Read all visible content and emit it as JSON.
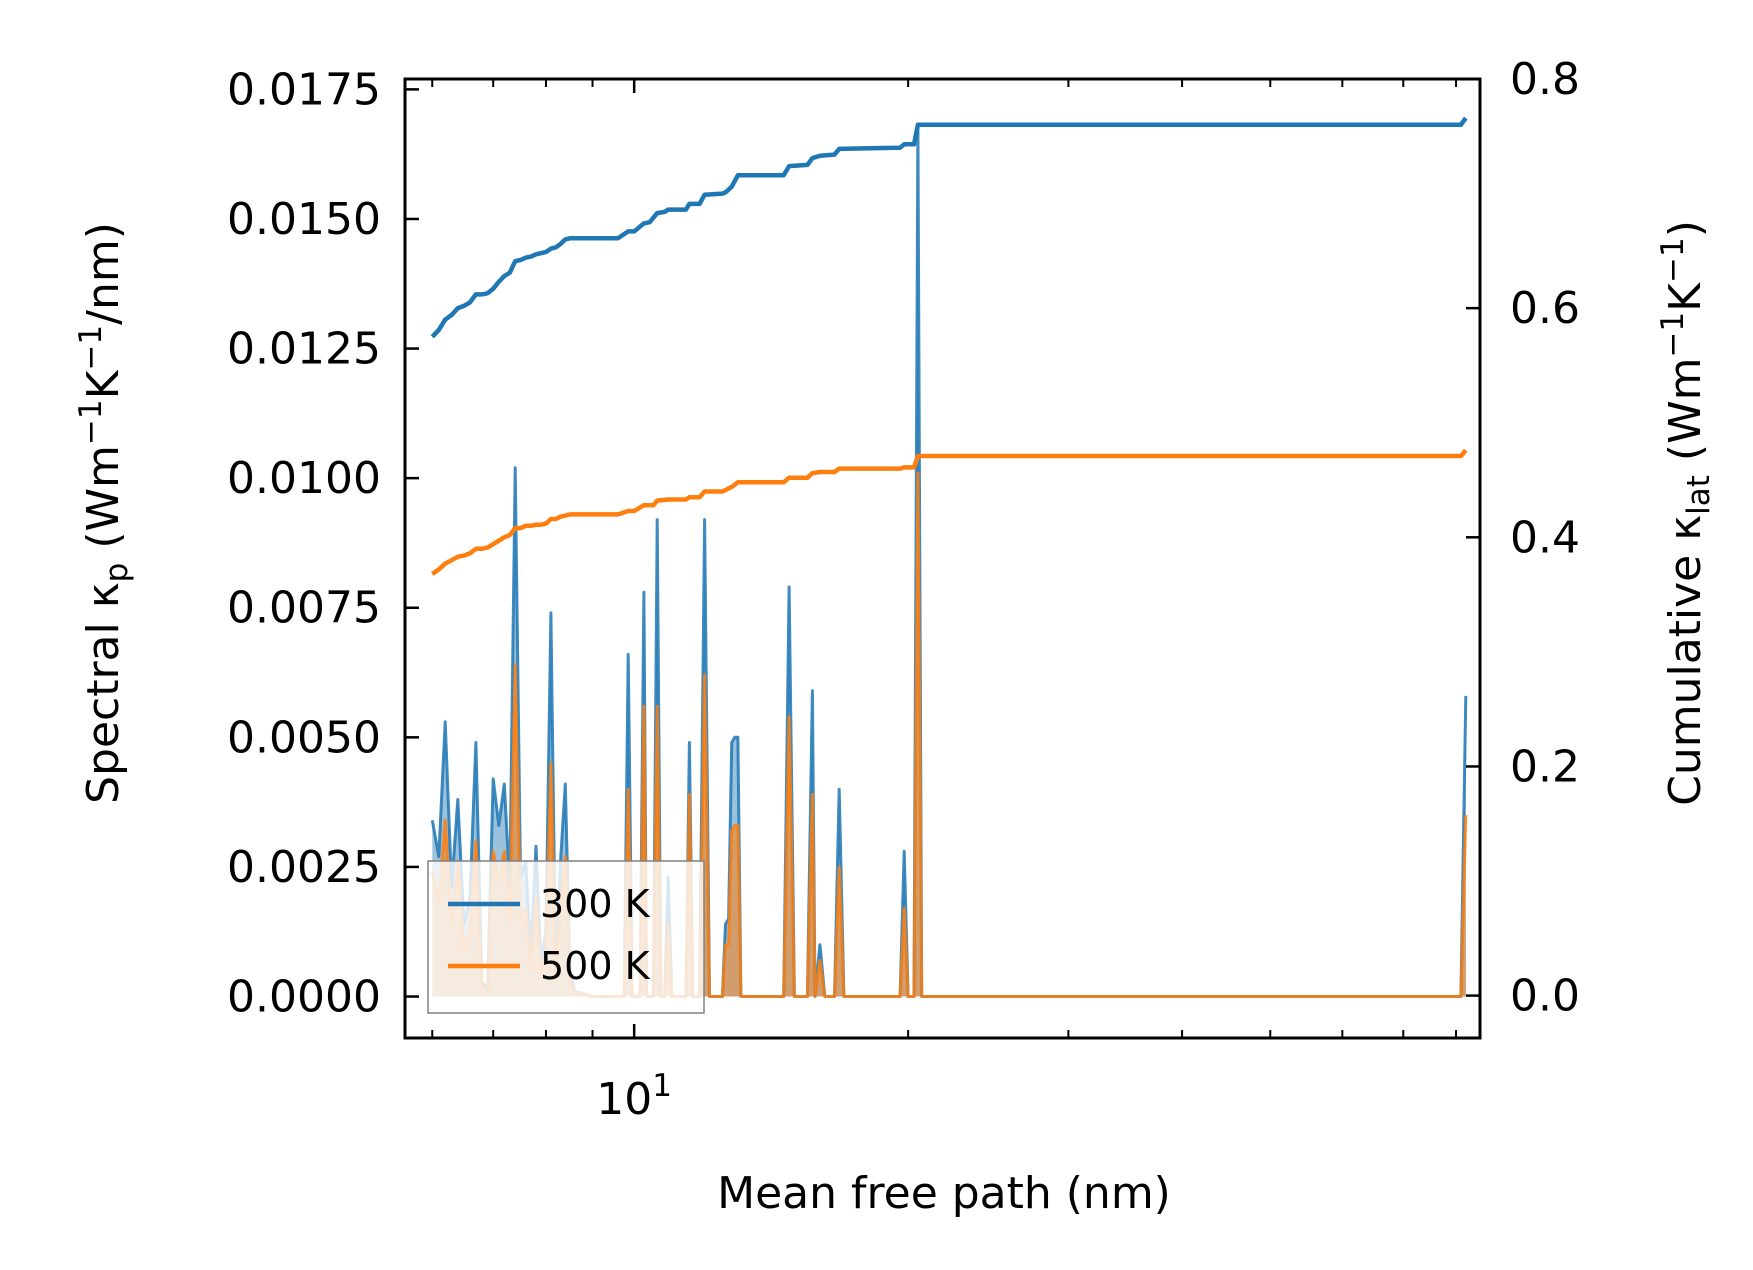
{
  "chart_data": {
    "type": "line",
    "xlabel": "Mean free path (nm)",
    "xscale": "log",
    "xlim": [
      5.6,
      85
    ],
    "x_major_ticks": [
      {
        "value": 10,
        "base": "10",
        "exp": "1"
      }
    ],
    "x_minor_ticks": [
      6,
      7,
      8,
      9,
      20,
      30,
      40,
      50,
      60,
      70,
      80
    ],
    "ylabel_left": {
      "pre": "Spectral κ",
      "sub": "p",
      "unit": " (Wm",
      "e1": "−1",
      "mid": "K",
      "e2": "−1",
      "end": "/nm)"
    },
    "ylabel_right": {
      "pre": "Cumulative κ",
      "sub": "lat",
      "unit": " (Wm",
      "e1": "−1",
      "mid": "K",
      "e2": "−1",
      "end": ")"
    },
    "ylim_left": [
      -0.0008,
      0.0177
    ],
    "ylim_right": [
      -0.037,
      0.8
    ],
    "yticks_left": [
      "0.0000",
      "0.0025",
      "0.0050",
      "0.0075",
      "0.0100",
      "0.0125",
      "0.0150",
      "0.0175"
    ],
    "yticks_right": [
      "0.0",
      "0.2",
      "0.4",
      "0.6",
      "0.8"
    ],
    "legend": {
      "position": "lower-left",
      "entries": [
        "300 K",
        "500 K"
      ]
    },
    "colors": {
      "300 K": "#1f77b4",
      "500 K": "#ff7f0e"
    },
    "spectral": {
      "300 K": [
        [
          6.0,
          0.0034
        ],
        [
          6.1,
          0.0027
        ],
        [
          6.2,
          0.0053
        ],
        [
          6.3,
          0.0021
        ],
        [
          6.4,
          0.0038
        ],
        [
          6.5,
          0.0014
        ],
        [
          6.6,
          0.0019
        ],
        [
          6.7,
          0.0049
        ],
        [
          6.8,
          0.0003
        ],
        [
          6.9,
          0.0001
        ],
        [
          7.0,
          0.0042
        ],
        [
          7.1,
          0.0033
        ],
        [
          7.2,
          0.0041
        ],
        [
          7.3,
          0.0021
        ],
        [
          7.4,
          0.0102
        ],
        [
          7.5,
          0.0023
        ],
        [
          7.6,
          0.0026
        ],
        [
          7.7,
          0.0008
        ],
        [
          7.8,
          0.0029
        ],
        [
          7.9,
          0.0006
        ],
        [
          8.0,
          0.0013
        ],
        [
          8.1,
          0.0074
        ],
        [
          8.2,
          0.0004
        ],
        [
          8.3,
          0.0026
        ],
        [
          8.4,
          0.0041
        ],
        [
          8.5,
          0.0005
        ],
        [
          8.6,
          0.0001
        ],
        [
          9.0,
          0.0
        ],
        [
          9.6,
          0.0
        ],
        [
          9.75,
          0.0
        ],
        [
          9.85,
          0.0066
        ],
        [
          9.95,
          0.0
        ],
        [
          10.15,
          0.0
        ],
        [
          10.25,
          0.0078
        ],
        [
          10.32,
          0.0
        ],
        [
          10.5,
          0.0
        ],
        [
          10.6,
          0.0092
        ],
        [
          10.7,
          0.0
        ],
        [
          10.8,
          0.0
        ],
        [
          10.9,
          0.0023
        ],
        [
          11.0,
          0.0
        ],
        [
          11.4,
          0.0
        ],
        [
          11.5,
          0.0049
        ],
        [
          11.6,
          0.0
        ],
        [
          11.8,
          0.0
        ],
        [
          11.95,
          0.0092
        ],
        [
          12.1,
          0.0
        ],
        [
          12.5,
          0.0
        ],
        [
          12.6,
          0.0014
        ],
        [
          12.7,
          0.0015
        ],
        [
          12.8,
          0.0049
        ],
        [
          12.9,
          0.005
        ],
        [
          13.0,
          0.005
        ],
        [
          13.1,
          0.0
        ],
        [
          14.6,
          0.0
        ],
        [
          14.8,
          0.0079
        ],
        [
          15.0,
          0.0
        ],
        [
          15.5,
          0.0
        ],
        [
          15.7,
          0.0059
        ],
        [
          15.8,
          0.0
        ],
        [
          16.0,
          0.001
        ],
        [
          16.2,
          0.0
        ],
        [
          16.6,
          0.0
        ],
        [
          16.8,
          0.004
        ],
        [
          17.0,
          0.0
        ],
        [
          19.6,
          0.0
        ],
        [
          19.8,
          0.0028
        ],
        [
          20.0,
          0.0
        ],
        [
          20.3,
          0.0
        ],
        [
          20.5,
          0.0168
        ],
        [
          20.7,
          0.0
        ],
        [
          81.0,
          0.0
        ],
        [
          82.0,
          0.0058
        ]
      ],
      "500 K": [
        [
          6.0,
          0.0024
        ],
        [
          6.1,
          0.0018
        ],
        [
          6.2,
          0.0034
        ],
        [
          6.3,
          0.0014
        ],
        [
          6.4,
          0.0026
        ],
        [
          6.5,
          0.0009
        ],
        [
          6.6,
          0.0013
        ],
        [
          6.7,
          0.003
        ],
        [
          6.8,
          0.0002
        ],
        [
          6.9,
          0.0001
        ],
        [
          7.0,
          0.0028
        ],
        [
          7.1,
          0.0022
        ],
        [
          7.2,
          0.0028
        ],
        [
          7.3,
          0.0014
        ],
        [
          7.4,
          0.0064
        ],
        [
          7.5,
          0.0015
        ],
        [
          7.6,
          0.0017
        ],
        [
          7.7,
          0.0005
        ],
        [
          7.8,
          0.0019
        ],
        [
          7.9,
          0.0004
        ],
        [
          8.0,
          0.0009
        ],
        [
          8.1,
          0.0045
        ],
        [
          8.2,
          0.0003
        ],
        [
          8.3,
          0.0017
        ],
        [
          8.4,
          0.0027
        ],
        [
          8.5,
          0.0003
        ],
        [
          8.6,
          0.0001
        ],
        [
          9.0,
          0.0
        ],
        [
          9.6,
          0.0
        ],
        [
          9.75,
          0.0
        ],
        [
          9.85,
          0.004
        ],
        [
          9.95,
          0.0
        ],
        [
          10.15,
          0.0
        ],
        [
          10.25,
          0.0056
        ],
        [
          10.32,
          0.0
        ],
        [
          10.5,
          0.0
        ],
        [
          10.6,
          0.0056
        ],
        [
          10.7,
          0.0
        ],
        [
          10.8,
          0.0
        ],
        [
          10.9,
          0.0014
        ],
        [
          11.0,
          0.0
        ],
        [
          11.4,
          0.0
        ],
        [
          11.5,
          0.0039
        ],
        [
          11.6,
          0.0
        ],
        [
          11.8,
          0.0
        ],
        [
          11.95,
          0.0062
        ],
        [
          12.1,
          0.0
        ],
        [
          12.5,
          0.0
        ],
        [
          12.6,
          0.001
        ],
        [
          12.7,
          0.001
        ],
        [
          12.8,
          0.0032
        ],
        [
          12.9,
          0.0033
        ],
        [
          13.0,
          0.0033
        ],
        [
          13.1,
          0.0
        ],
        [
          14.6,
          0.0
        ],
        [
          14.8,
          0.0054
        ],
        [
          15.0,
          0.0
        ],
        [
          15.5,
          0.0
        ],
        [
          15.7,
          0.0039
        ],
        [
          15.8,
          0.0
        ],
        [
          16.0,
          0.0007
        ],
        [
          16.2,
          0.0
        ],
        [
          16.6,
          0.0
        ],
        [
          16.8,
          0.0025
        ],
        [
          17.0,
          0.0
        ],
        [
          19.6,
          0.0
        ],
        [
          19.8,
          0.0017
        ],
        [
          20.0,
          0.0
        ],
        [
          20.3,
          0.0
        ],
        [
          20.5,
          0.0101
        ],
        [
          20.7,
          0.0
        ],
        [
          81.0,
          0.0
        ],
        [
          82.0,
          0.0035
        ]
      ]
    },
    "cumulative": {
      "300 K": [
        [
          6.0,
          0.575
        ],
        [
          6.1,
          0.581
        ],
        [
          6.2,
          0.59
        ],
        [
          6.3,
          0.594
        ],
        [
          6.4,
          0.6
        ],
        [
          6.5,
          0.602
        ],
        [
          6.6,
          0.605
        ],
        [
          6.7,
          0.612
        ],
        [
          6.8,
          0.612
        ],
        [
          6.9,
          0.613
        ],
        [
          7.0,
          0.617
        ],
        [
          7.1,
          0.623
        ],
        [
          7.2,
          0.628
        ],
        [
          7.3,
          0.631
        ],
        [
          7.4,
          0.641
        ],
        [
          7.5,
          0.642
        ],
        [
          7.6,
          0.644
        ],
        [
          7.7,
          0.645
        ],
        [
          7.8,
          0.647
        ],
        [
          7.9,
          0.648
        ],
        [
          8.0,
          0.649
        ],
        [
          8.1,
          0.652
        ],
        [
          8.2,
          0.653
        ],
        [
          8.3,
          0.656
        ],
        [
          8.4,
          0.66
        ],
        [
          8.5,
          0.661
        ],
        [
          8.6,
          0.661
        ],
        [
          9.0,
          0.661
        ],
        [
          9.6,
          0.661
        ],
        [
          9.85,
          0.667
        ],
        [
          10.0,
          0.667
        ],
        [
          10.25,
          0.674
        ],
        [
          10.4,
          0.675
        ],
        [
          10.6,
          0.683
        ],
        [
          10.8,
          0.684
        ],
        [
          10.9,
          0.686
        ],
        [
          11.4,
          0.686
        ],
        [
          11.5,
          0.691
        ],
        [
          11.8,
          0.691
        ],
        [
          11.95,
          0.699
        ],
        [
          12.5,
          0.7
        ],
        [
          12.6,
          0.701
        ],
        [
          12.8,
          0.706
        ],
        [
          13.0,
          0.716
        ],
        [
          14.6,
          0.716
        ],
        [
          14.8,
          0.724
        ],
        [
          15.5,
          0.725
        ],
        [
          15.7,
          0.731
        ],
        [
          16.0,
          0.733
        ],
        [
          16.6,
          0.734
        ],
        [
          16.8,
          0.739
        ],
        [
          19.6,
          0.74
        ],
        [
          19.8,
          0.743
        ],
        [
          20.3,
          0.743
        ],
        [
          20.5,
          0.76
        ],
        [
          81.0,
          0.76
        ],
        [
          82.0,
          0.766
        ]
      ],
      "500 K": [
        [
          6.0,
          0.368
        ],
        [
          6.1,
          0.372
        ],
        [
          6.2,
          0.377
        ],
        [
          6.3,
          0.38
        ],
        [
          6.4,
          0.383
        ],
        [
          6.5,
          0.384
        ],
        [
          6.6,
          0.386
        ],
        [
          6.7,
          0.39
        ],
        [
          6.8,
          0.39
        ],
        [
          6.9,
          0.391
        ],
        [
          7.0,
          0.394
        ],
        [
          7.1,
          0.397
        ],
        [
          7.2,
          0.4
        ],
        [
          7.3,
          0.402
        ],
        [
          7.4,
          0.408
        ],
        [
          7.5,
          0.408
        ],
        [
          7.6,
          0.41
        ],
        [
          7.7,
          0.41
        ],
        [
          7.8,
          0.411
        ],
        [
          7.9,
          0.411
        ],
        [
          8.0,
          0.412
        ],
        [
          8.1,
          0.416
        ],
        [
          8.2,
          0.416
        ],
        [
          8.3,
          0.418
        ],
        [
          8.4,
          0.419
        ],
        [
          8.5,
          0.42
        ],
        [
          8.6,
          0.42
        ],
        [
          9.0,
          0.42
        ],
        [
          9.6,
          0.42
        ],
        [
          9.85,
          0.423
        ],
        [
          10.0,
          0.423
        ],
        [
          10.25,
          0.428
        ],
        [
          10.5,
          0.428
        ],
        [
          10.6,
          0.432
        ],
        [
          10.9,
          0.433
        ],
        [
          11.4,
          0.433
        ],
        [
          11.5,
          0.435
        ],
        [
          11.8,
          0.435
        ],
        [
          11.95,
          0.44
        ],
        [
          12.5,
          0.44
        ],
        [
          12.8,
          0.444
        ],
        [
          13.0,
          0.448
        ],
        [
          14.6,
          0.448
        ],
        [
          14.8,
          0.452
        ],
        [
          15.5,
          0.452
        ],
        [
          15.7,
          0.456
        ],
        [
          16.0,
          0.457
        ],
        [
          16.6,
          0.457
        ],
        [
          16.8,
          0.46
        ],
        [
          19.6,
          0.46
        ],
        [
          19.8,
          0.461
        ],
        [
          20.3,
          0.461
        ],
        [
          20.5,
          0.471
        ],
        [
          81.0,
          0.471
        ],
        [
          82.0,
          0.476
        ]
      ]
    }
  }
}
